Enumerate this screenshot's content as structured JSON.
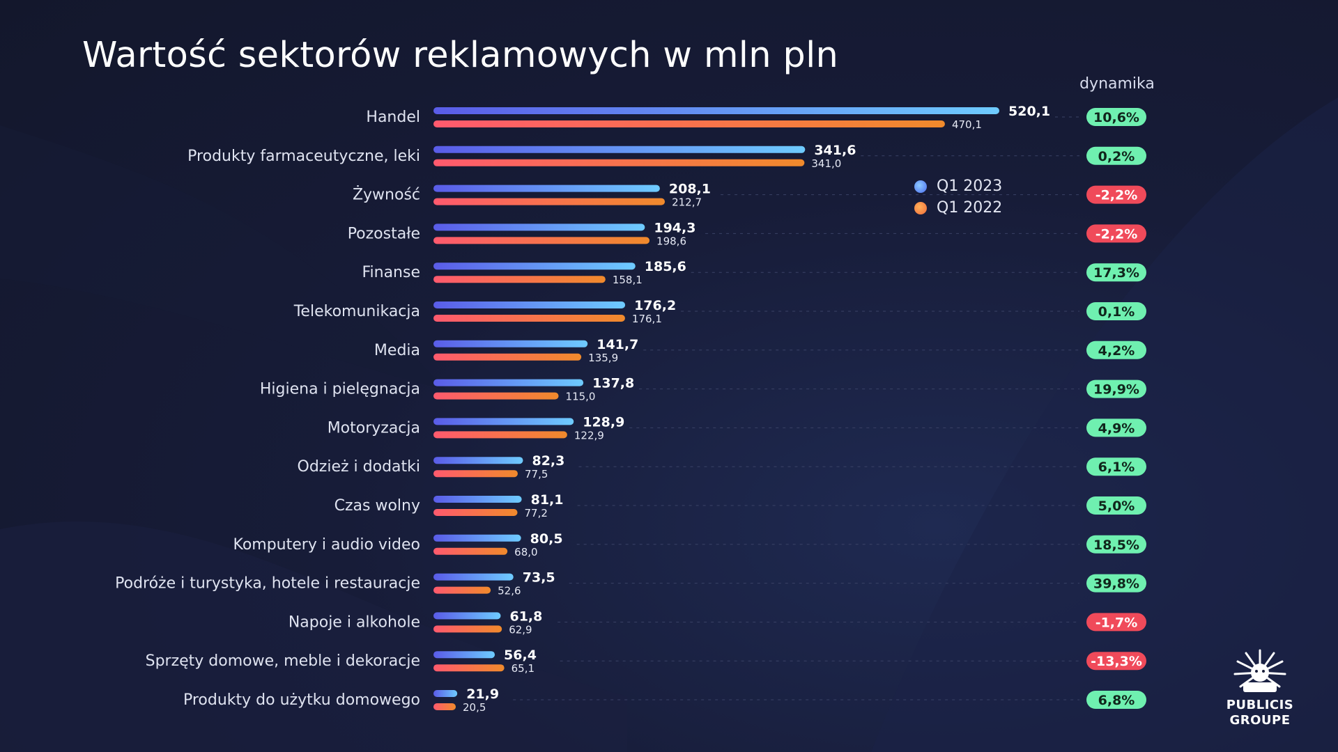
{
  "title": "Wartość sektorów reklamowych w mln pln",
  "dynamics_header": "dynamika",
  "legend": [
    {
      "label": "Q1 2023",
      "color": "#5b7cf5"
    },
    {
      "label": "Q1 2022",
      "color": "#f36a3c"
    }
  ],
  "colors": {
    "bar_2023_start": "#5a5ce8",
    "bar_2023_end": "#6ecbff",
    "bar_2022_start": "#ff5a6e",
    "bar_2022_end": "#f08a2c",
    "badge_positive": "#6ff0b0",
    "badge_negative": "#f04a5a"
  },
  "logo": {
    "line1": "PUBLICIS",
    "line2": "GROUPE"
  },
  "chart_data": {
    "type": "bar",
    "orientation": "horizontal",
    "title": "Wartość sektorów reklamowych w mln pln",
    "categories": [
      "Handel",
      "Produkty farmaceutyczne, leki",
      "Żywność",
      "Pozostałe",
      "Finanse",
      "Telekomunikacja",
      "Media",
      "Higiena i pielęgnacja",
      "Motoryzacja",
      "Odzież i dodatki",
      "Czas wolny",
      "Komputery i audio video",
      "Podróże i turystyka, hotele i restauracje",
      "Napoje i alkohole",
      "Sprzęty domowe, meble i dekoracje",
      "Produkty do użytku domowego"
    ],
    "series": [
      {
        "name": "Q1 2023",
        "values": [
          520.1,
          341.6,
          208.1,
          194.3,
          185.6,
          176.2,
          141.7,
          137.8,
          128.9,
          82.3,
          81.1,
          80.5,
          73.5,
          61.8,
          56.4,
          21.9
        ]
      },
      {
        "name": "Q1 2022",
        "values": [
          470.1,
          341.0,
          212.7,
          198.6,
          158.1,
          176.1,
          135.9,
          115.0,
          122.9,
          77.5,
          77.2,
          68.0,
          52.6,
          62.9,
          65.1,
          20.5
        ]
      }
    ],
    "value_labels_2023": [
      "520,1",
      "341,6",
      "208,1",
      "194,3",
      "185,6",
      "176,2",
      "141,7",
      "137,8",
      "128,9",
      "82,3",
      "81,1",
      "80,5",
      "73,5",
      "61,8",
      "56,4",
      "21,9"
    ],
    "value_labels_2022": [
      "470,1",
      "341,0",
      "212,7",
      "198,6",
      "158,1",
      "176,1",
      "135,9",
      "115,0",
      "122,9",
      "77,5",
      "77,2",
      "68,0",
      "52,6",
      "62,9",
      "65,1",
      "20,5"
    ],
    "dynamics_header": "dynamika",
    "dynamics": [
      "10,6%",
      "0,2%",
      "-2,2%",
      "-2,2%",
      "17,3%",
      "0,1%",
      "4,2%",
      "19,9%",
      "4,9%",
      "6,1%",
      "5,0%",
      "18,5%",
      "39,8%",
      "-1,7%",
      "-13,3%",
      "6,8%"
    ],
    "xlim": [
      0,
      520.1
    ],
    "grid": false,
    "legend_position": "right"
  }
}
